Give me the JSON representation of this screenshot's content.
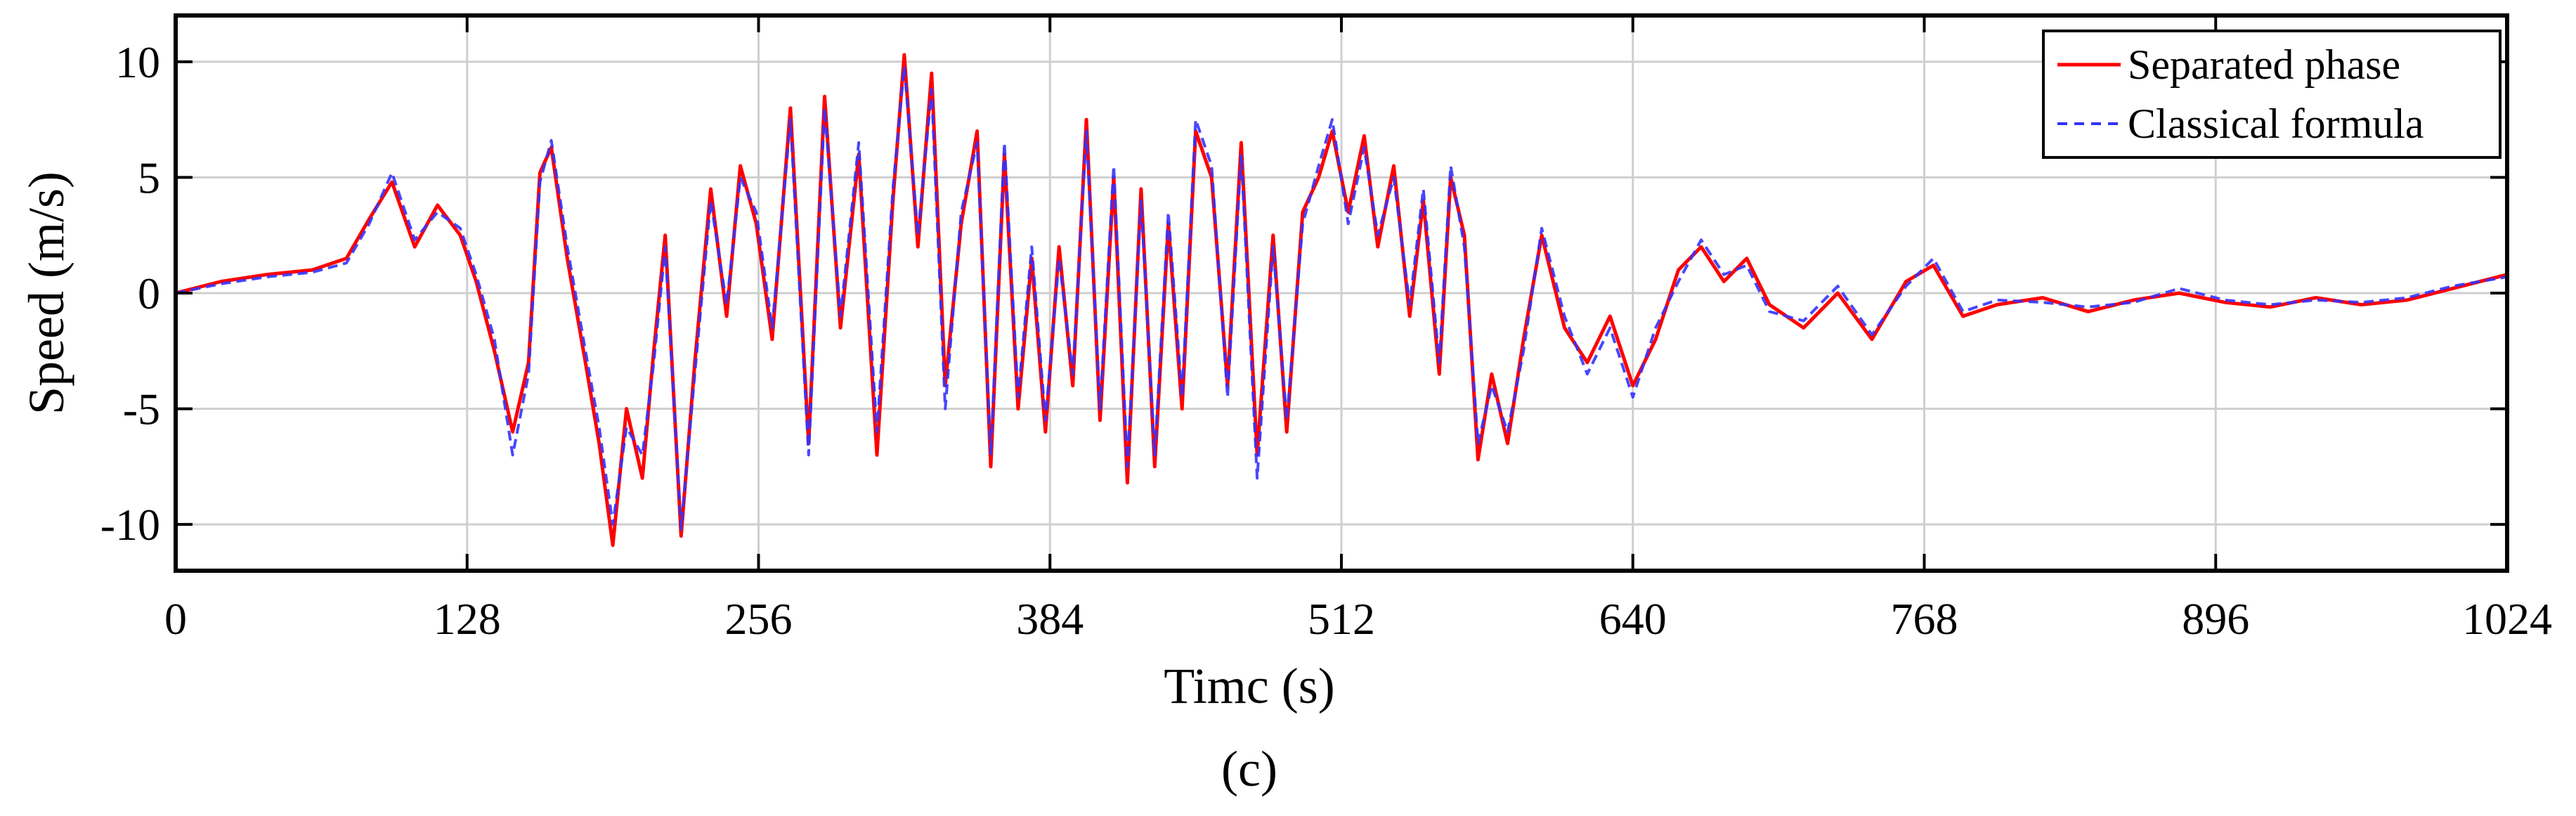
{
  "figure": {
    "caption": "(c)"
  },
  "chart_data": {
    "type": "line",
    "xlabel": "Timc (s)",
    "ylabel": "Speed (m/s)",
    "xlim": [
      0,
      1024
    ],
    "ylim": [
      -12,
      12
    ],
    "xticks": [
      0,
      128,
      256,
      384,
      512,
      640,
      768,
      896,
      1024
    ],
    "yticks": [
      -10,
      -5,
      0,
      5,
      10
    ],
    "grid": true,
    "legend_position": "top-right",
    "series": [
      {
        "name": "Separated phase",
        "color": "#ff0000",
        "style": "solid",
        "x": [
          0,
          20,
          40,
          60,
          75,
          85,
          95,
          105,
          115,
          125,
          132,
          140,
          148,
          155,
          160,
          165,
          172,
          180,
          186,
          192,
          198,
          205,
          210,
          215,
          222,
          228,
          235,
          242,
          248,
          255,
          262,
          270,
          278,
          285,
          292,
          300,
          308,
          315,
          320,
          326,
          332,
          338,
          345,
          352,
          358,
          364,
          370,
          376,
          382,
          388,
          394,
          400,
          406,
          412,
          418,
          424,
          430,
          436,
          442,
          448,
          455,
          462,
          468,
          475,
          482,
          488,
          495,
          502,
          508,
          515,
          522,
          528,
          535,
          542,
          548,
          555,
          560,
          566,
          572,
          578,
          585,
          592,
          600,
          610,
          620,
          630,
          640,
          650,
          660,
          670,
          680,
          690,
          700,
          715,
          730,
          745,
          760,
          772,
          785,
          800,
          820,
          840,
          860,
          880,
          900,
          920,
          940,
          960,
          980,
          1000,
          1024
        ],
        "y": [
          0.0,
          0.5,
          0.8,
          1.0,
          1.5,
          3.2,
          4.8,
          2.0,
          3.8,
          2.5,
          0.5,
          -2.5,
          -6.0,
          -3.0,
          5.2,
          6.3,
          1.5,
          -3.0,
          -6.5,
          -10.9,
          -5.0,
          -8.0,
          -2.5,
          2.5,
          -10.5,
          -3.0,
          4.5,
          -1.0,
          5.5,
          3.0,
          -2.0,
          8.0,
          -6.5,
          8.5,
          -1.5,
          6.0,
          -7.0,
          4.0,
          10.3,
          2.0,
          9.5,
          -4.0,
          3.0,
          7.0,
          -7.5,
          6.0,
          -5.0,
          1.5,
          -6.0,
          2.0,
          -4.0,
          7.5,
          -5.5,
          5.0,
          -8.2,
          4.5,
          -7.5,
          3.0,
          -5.0,
          7.0,
          5.0,
          -4.0,
          6.5,
          -7.0,
          2.5,
          -6.0,
          3.5,
          5.0,
          7.0,
          3.5,
          6.8,
          2.0,
          5.5,
          -1.0,
          4.0,
          -3.5,
          5.0,
          2.5,
          -7.2,
          -3.5,
          -6.5,
          -2.0,
          2.5,
          -1.5,
          -3.0,
          -1.0,
          -4.0,
          -2.0,
          1.0,
          2.0,
          0.5,
          1.5,
          -0.5,
          -1.5,
          0.0,
          -2.0,
          0.5,
          1.2,
          -1.0,
          -0.5,
          -0.2,
          -0.8,
          -0.3,
          0.0,
          -0.4,
          -0.6,
          -0.2,
          -0.5,
          -0.3,
          0.2,
          0.8
        ]
      },
      {
        "name": "Classical formula",
        "color": "#3333ff",
        "style": "dashed",
        "x": [
          0,
          20,
          40,
          60,
          75,
          85,
          95,
          105,
          115,
          125,
          132,
          140,
          148,
          155,
          160,
          165,
          172,
          180,
          186,
          192,
          198,
          205,
          210,
          215,
          222,
          228,
          235,
          242,
          248,
          255,
          262,
          270,
          278,
          285,
          292,
          300,
          308,
          315,
          320,
          326,
          332,
          338,
          345,
          352,
          358,
          364,
          370,
          376,
          382,
          388,
          394,
          400,
          406,
          412,
          418,
          424,
          430,
          436,
          442,
          448,
          455,
          462,
          468,
          475,
          482,
          488,
          495,
          502,
          508,
          515,
          522,
          528,
          535,
          542,
          548,
          555,
          560,
          566,
          572,
          578,
          585,
          592,
          600,
          610,
          620,
          630,
          640,
          650,
          660,
          670,
          680,
          690,
          700,
          715,
          730,
          745,
          760,
          772,
          785,
          800,
          820,
          840,
          860,
          880,
          900,
          920,
          940,
          960,
          980,
          1000,
          1024
        ],
        "y": [
          0.0,
          0.4,
          0.7,
          0.9,
          1.3,
          3.0,
          5.2,
          2.3,
          3.5,
          2.8,
          0.8,
          -2.0,
          -7.0,
          -3.5,
          4.8,
          6.6,
          2.0,
          -2.5,
          -5.8,
          -10.0,
          -5.8,
          -7.0,
          -3.0,
          2.0,
          -10.2,
          -3.5,
          4.0,
          -0.5,
          5.0,
          3.5,
          -1.5,
          7.5,
          -7.0,
          8.0,
          -1.0,
          6.5,
          -6.0,
          4.5,
          9.8,
          2.5,
          8.8,
          -5.0,
          3.5,
          6.5,
          -7.0,
          6.5,
          -4.5,
          2.0,
          -5.5,
          1.5,
          -3.5,
          7.0,
          -5.0,
          5.5,
          -7.5,
          4.0,
          -7.0,
          3.5,
          -4.5,
          7.5,
          5.5,
          -4.5,
          6.0,
          -8.0,
          2.0,
          -5.5,
          3.0,
          5.5,
          7.5,
          3.0,
          6.3,
          2.5,
          5.0,
          -0.5,
          4.5,
          -3.0,
          5.5,
          2.0,
          -6.5,
          -4.0,
          -6.0,
          -2.5,
          2.8,
          -1.0,
          -3.5,
          -1.5,
          -4.5,
          -1.5,
          0.5,
          2.3,
          0.8,
          1.2,
          -0.8,
          -1.2,
          0.3,
          -1.8,
          0.3,
          1.5,
          -0.8,
          -0.3,
          -0.4,
          -0.6,
          -0.4,
          0.2,
          -0.3,
          -0.5,
          -0.3,
          -0.4,
          -0.2,
          0.3,
          0.7
        ]
      }
    ]
  }
}
